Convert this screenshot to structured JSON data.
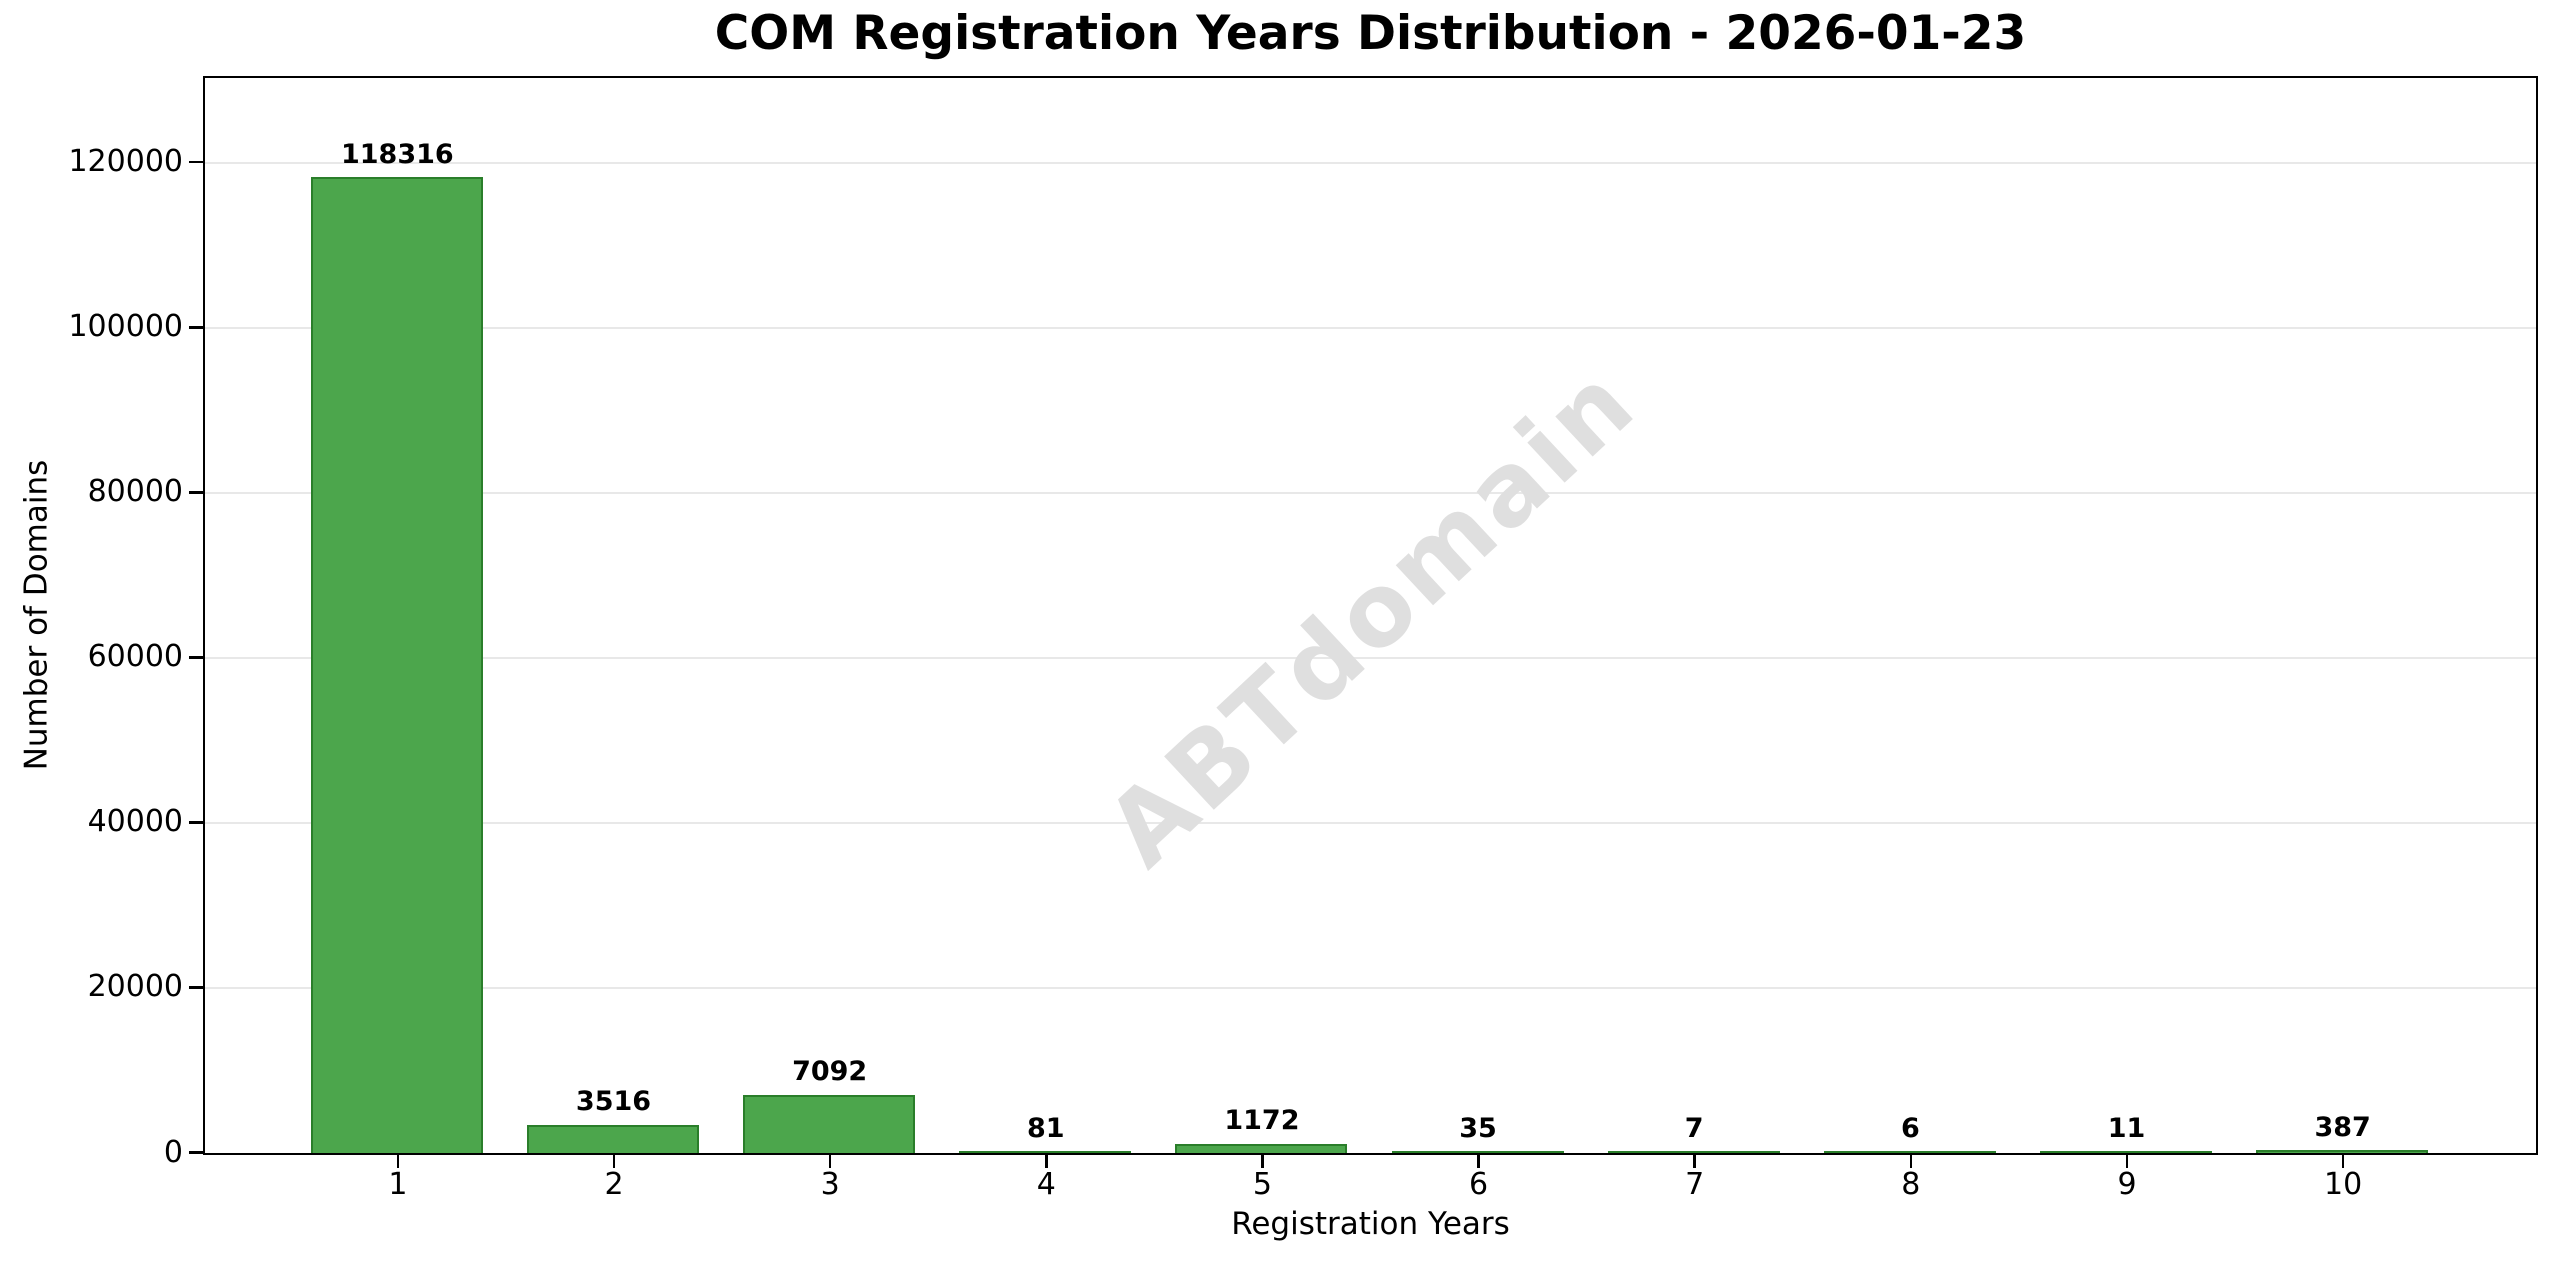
{
  "chart_data": {
    "type": "bar",
    "title": "COM Registration Years Distribution - 2026-01-23",
    "xlabel": "Registration Years",
    "ylabel": "Number of Domains",
    "categories": [
      1,
      2,
      3,
      4,
      5,
      6,
      7,
      8,
      9,
      10
    ],
    "values": [
      118316,
      3516,
      7092,
      81,
      1172,
      35,
      7,
      6,
      11,
      387
    ],
    "yticks": [
      0,
      20000,
      40000,
      60000,
      80000,
      100000,
      120000
    ],
    "ylim": [
      0,
      130148
    ],
    "xlim": [
      0.11,
      10.89
    ],
    "bar_width_units": 0.8,
    "grid": "horizontal",
    "legend": "none",
    "colors": {
      "bar_fill": "#4CA64C",
      "bar_edge": "#2A7E2A",
      "gridline": "#E8E8E8",
      "axis": "#000000",
      "watermark": "#DFDFDF"
    },
    "watermark": {
      "text": "ABTdomain",
      "rotation_deg": -43
    }
  }
}
